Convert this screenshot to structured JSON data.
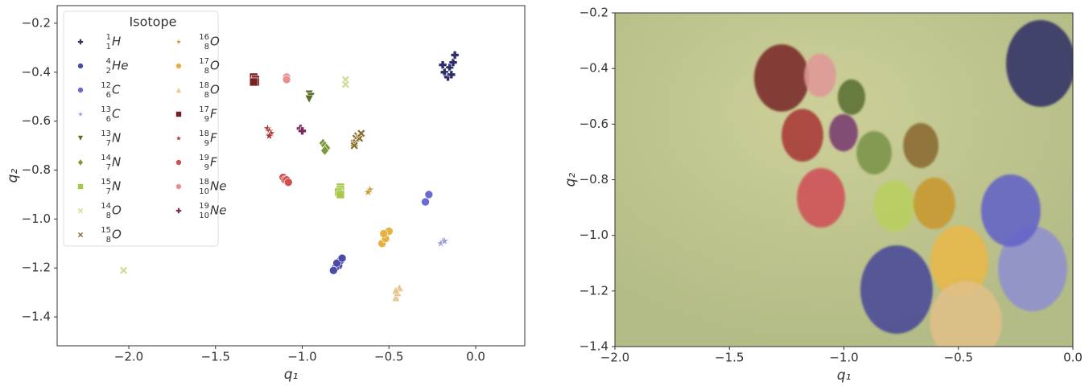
{
  "chart_data": [
    {
      "type": "scatter",
      "x_label": "q₁",
      "y_label": "q₂",
      "legend_title": "Isotope",
      "legend_loc": "upper left",
      "xlim": [
        -2.413,
        0.283
      ],
      "ylim": [
        -1.518,
        -0.128
      ],
      "xticks": [
        {
          "value": -2,
          "label": "−2.0"
        },
        {
          "value": -1.5,
          "label": "−1.5"
        },
        {
          "value": -1,
          "label": "−1.0"
        },
        {
          "value": -0.5,
          "label": "−0.5"
        },
        {
          "value": 0,
          "label": "0.0"
        }
      ],
      "yticks": [
        {
          "value": -0.2,
          "label": "−0.2"
        },
        {
          "value": -0.4,
          "label": "−0.4"
        },
        {
          "value": -0.6,
          "label": "−0.6"
        },
        {
          "value": -0.8,
          "label": "−0.8"
        },
        {
          "value": -1,
          "label": "−1.0"
        },
        {
          "value": -1.2,
          "label": "−1.2"
        },
        {
          "value": -1.4,
          "label": "−1.4"
        }
      ],
      "series": [
        {
          "name": "H",
          "A": "1",
          "Z": "1",
          "color": "#2d2f6b",
          "marker": "plus",
          "x": [
            -0.15,
            -0.18,
            -0.13,
            -0.16,
            -0.12,
            -0.19,
            -0.14
          ],
          "y": [
            -0.38,
            -0.4,
            -0.36,
            -0.42,
            -0.33,
            -0.37,
            -0.41
          ]
        },
        {
          "name": "He",
          "A": "4",
          "Z": "2",
          "color": "#4a4aa8",
          "marker": "circle",
          "x": [
            -0.79,
            -0.81,
            -0.78,
            -0.8,
            -0.77,
            -0.82
          ],
          "y": [
            -1.19,
            -1.2,
            -1.17,
            -1.18,
            -1.16,
            -1.21
          ]
        },
        {
          "name": "C",
          "A": "12",
          "Z": "6",
          "color": "#6a6ad4",
          "marker": "circle",
          "x": [
            -0.27,
            -0.29
          ],
          "y": [
            -0.9,
            -0.93
          ]
        },
        {
          "name": "C",
          "A": "13",
          "Z": "6",
          "color": "#9c9cd8",
          "marker": "star",
          "x": [
            -0.19,
            -0.2,
            -0.18
          ],
          "y": [
            -1.09,
            -1.1,
            -1.09
          ]
        },
        {
          "name": "N",
          "A": "13",
          "Z": "7",
          "color": "#5a6e2a",
          "marker": "tri-down",
          "x": [
            -0.96,
            -0.95,
            -0.96
          ],
          "y": [
            -0.49,
            -0.5,
            -0.51
          ]
        },
        {
          "name": "N",
          "A": "14",
          "Z": "7",
          "color": "#7a9a3a",
          "marker": "diamond",
          "x": [
            -0.88,
            -0.87,
            -0.86,
            -0.87
          ],
          "y": [
            -0.69,
            -0.7,
            -0.71,
            -0.72
          ]
        },
        {
          "name": "N",
          "A": "15",
          "Z": "7",
          "color": "#a8c84a",
          "marker": "square",
          "x": [
            -0.78,
            -0.78,
            -0.79,
            -0.78
          ],
          "y": [
            -0.87,
            -0.88,
            -0.89,
            -0.9
          ]
        },
        {
          "name": "O",
          "A": "14",
          "Z": "8",
          "color": "#d0dc90",
          "marker": "x",
          "x": [
            -2.03,
            -0.75,
            -0.75
          ],
          "y": [
            -1.21,
            -0.43,
            -0.45
          ]
        },
        {
          "name": "O",
          "A": "15",
          "Z": "8",
          "color": "#8a6a2a",
          "marker": "x",
          "x": [
            -0.7,
            -0.69,
            -0.68,
            -0.67,
            -0.7,
            -0.66
          ],
          "y": [
            -0.69,
            -0.67,
            -0.66,
            -0.67,
            -0.7,
            -0.65
          ]
        },
        {
          "name": "O",
          "A": "16",
          "Z": "8",
          "color": "#c89a30",
          "marker": "star",
          "x": [
            -0.61,
            -0.62
          ],
          "y": [
            -0.88,
            -0.89
          ]
        },
        {
          "name": "O",
          "A": "17",
          "Z": "8",
          "color": "#e8b040",
          "marker": "circle",
          "x": [
            -0.54,
            -0.52,
            -0.5,
            -0.53
          ],
          "y": [
            -1.1,
            -1.08,
            -1.05,
            -1.06
          ]
        },
        {
          "name": "O",
          "A": "18",
          "Z": "8",
          "color": "#e8c890",
          "marker": "tri-up",
          "x": [
            -0.46,
            -0.45,
            -0.44,
            -0.46
          ],
          "y": [
            -1.32,
            -1.3,
            -1.28,
            -1.29
          ]
        },
        {
          "name": "F",
          "A": "17",
          "Z": "9",
          "color": "#7a2020",
          "marker": "square",
          "x": [
            -1.28,
            -1.27,
            -1.27,
            -1.28
          ],
          "y": [
            -0.42,
            -0.43,
            -0.44,
            -0.44
          ]
        },
        {
          "name": "F",
          "A": "18",
          "Z": "9",
          "color": "#a83030",
          "marker": "star",
          "x": [
            -1.2,
            -1.19,
            -1.18,
            -1.19
          ],
          "y": [
            -0.63,
            -0.64,
            -0.65,
            -0.66
          ]
        },
        {
          "name": "F",
          "A": "19",
          "Z": "9",
          "color": "#d05050",
          "marker": "circle",
          "x": [
            -1.11,
            -1.1,
            -1.09,
            -1.08
          ],
          "y": [
            -0.83,
            -0.84,
            -0.84,
            -0.85
          ]
        },
        {
          "name": "Ne",
          "A": "18",
          "Z": "10",
          "color": "#e89090",
          "marker": "circle",
          "x": [
            -1.09,
            -1.09
          ],
          "y": [
            -0.42,
            -0.43
          ]
        },
        {
          "name": "Ne",
          "A": "19",
          "Z": "10",
          "color": "#7a2a5a",
          "marker": "plus",
          "x": [
            -1.01,
            -1.0
          ],
          "y": [
            -0.63,
            -0.64
          ]
        }
      ]
    },
    {
      "type": "ellipse",
      "x_label": "q₁",
      "y_label": "q₂",
      "background": "#b3bb86",
      "xlim": [
        -2,
        0
      ],
      "ylim": [
        -1.4,
        -0.2
      ],
      "xticks": [
        {
          "value": -2,
          "label": "−2.0"
        },
        {
          "value": -1.5,
          "label": "−1.5"
        },
        {
          "value": -1,
          "label": "−1.0"
        },
        {
          "value": -0.5,
          "label": "−0.5"
        },
        {
          "value": 0,
          "label": "0.0"
        }
      ],
      "yticks": [
        {
          "value": -0.2,
          "label": "−0.2"
        },
        {
          "value": -0.4,
          "label": "−0.4"
        },
        {
          "value": -0.6,
          "label": "−0.6"
        },
        {
          "value": -0.8,
          "label": "−0.8"
        },
        {
          "value": -1,
          "label": "−1.0"
        },
        {
          "value": -1.2,
          "label": "−1.2"
        },
        {
          "value": -1.4,
          "label": "−1.4"
        }
      ],
      "x": [
        -0.141,
        -1.272,
        -1.104,
        -0.967,
        -1.002,
        -1.181,
        -0.868,
        -0.664,
        -1.1,
        -0.78,
        -0.605,
        -0.176,
        -0.271,
        -0.496,
        -0.77,
        -0.467
      ],
      "y": [
        -0.382,
        -0.434,
        -0.425,
        -0.503,
        -0.631,
        -0.64,
        -0.703,
        -0.677,
        -0.865,
        -0.894,
        -0.885,
        -1.12,
        -0.911,
        -1.094,
        -1.195,
        -1.31
      ],
      "rx": [
        0.151,
        0.12,
        0.07,
        0.06,
        0.063,
        0.091,
        0.077,
        0.077,
        0.105,
        0.091,
        0.091,
        0.151,
        0.13,
        0.127,
        0.158,
        0.158
      ],
      "ry": [
        0.156,
        0.121,
        0.078,
        0.064,
        0.067,
        0.095,
        0.078,
        0.081,
        0.107,
        0.093,
        0.093,
        0.153,
        0.13,
        0.13,
        0.159,
        0.145
      ],
      "colors": [
        "#333366",
        "#7a2a2a",
        "#e09898",
        "#5a7030",
        "#7a3a70",
        "#a83838",
        "#7a9448",
        "#8a6a30",
        "#d05058",
        "#b8d060",
        "#c8982e",
        "#9090d0",
        "#6464c8",
        "#e8b848",
        "#4a4a98",
        "#e0c088"
      ]
    }
  ]
}
